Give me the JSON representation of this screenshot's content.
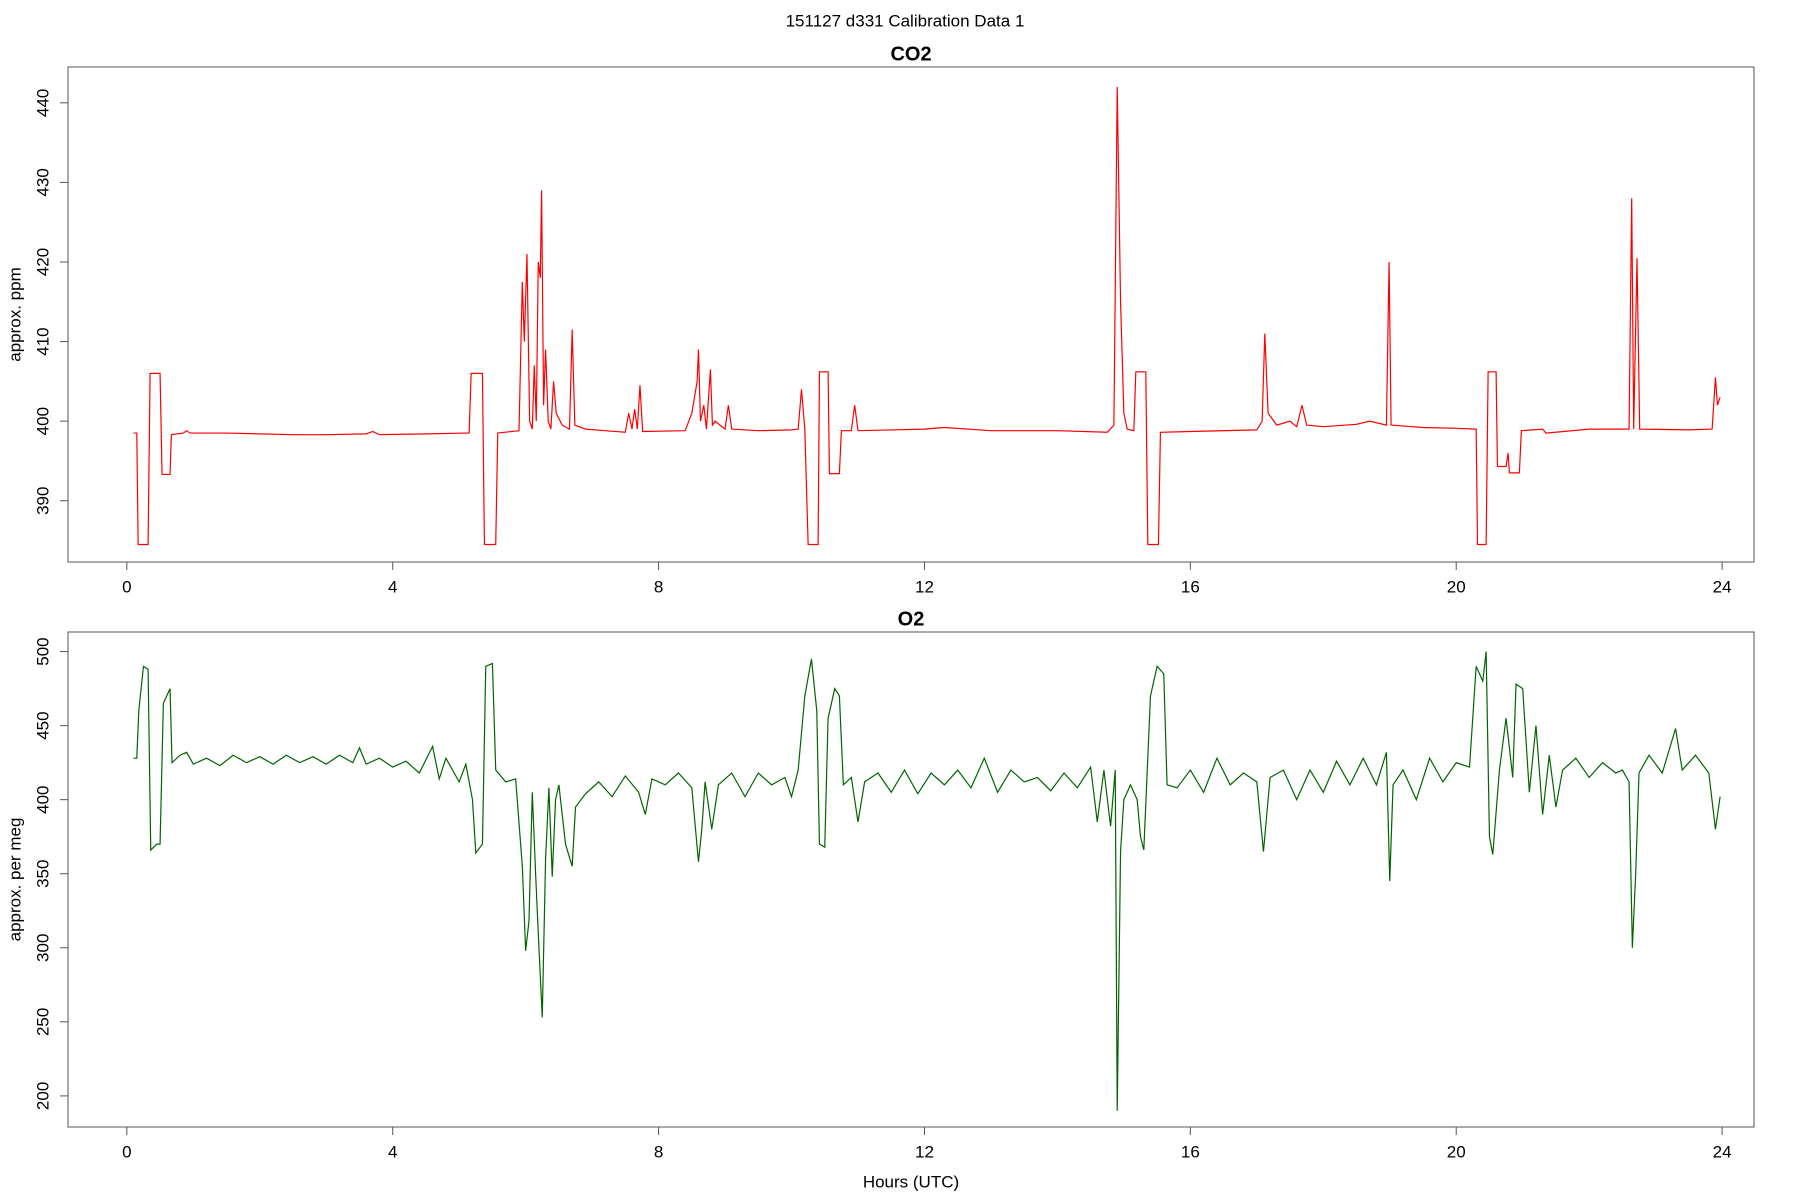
{
  "title": "151127   d331   Calibration Data 1",
  "chart_data": [
    {
      "type": "line",
      "title": "CO2",
      "ylabel": "approx. ppm",
      "xlim": [
        -0.885,
        24.48
      ],
      "ylim": [
        382.3,
        444.5
      ],
      "xticks": [
        0,
        4,
        8,
        12,
        16,
        20,
        24
      ],
      "yticks": [
        390,
        400,
        410,
        420,
        430,
        440
      ],
      "x": [
        0.1,
        0.15,
        0.17,
        0.32,
        0.35,
        0.5,
        0.53,
        0.65,
        0.67,
        0.85,
        0.9,
        0.95,
        1.5,
        2.5,
        3.0,
        3.6,
        3.7,
        3.8,
        4.5,
        5.1,
        5.15,
        5.18,
        5.35,
        5.38,
        5.55,
        5.58,
        5.9,
        5.95,
        5.98,
        6.02,
        6.06,
        6.1,
        6.13,
        6.16,
        6.19,
        6.22,
        6.24,
        6.27,
        6.3,
        6.34,
        6.38,
        6.42,
        6.46,
        6.55,
        6.66,
        6.7,
        6.74,
        6.9,
        7.2,
        7.5,
        7.55,
        7.6,
        7.64,
        7.68,
        7.72,
        7.76,
        8.4,
        8.5,
        8.58,
        8.6,
        8.63,
        8.68,
        8.72,
        8.78,
        8.81,
        8.85,
        9.0,
        9.05,
        9.1,
        9.5,
        10.0,
        10.1,
        10.15,
        10.2,
        10.25,
        10.4,
        10.42,
        10.55,
        10.57,
        10.72,
        10.75,
        10.9,
        10.95,
        11.0,
        12.0,
        12.3,
        13.0,
        14.0,
        14.75,
        14.85,
        14.9,
        14.95,
        15.0,
        15.05,
        15.15,
        15.18,
        15.33,
        15.36,
        15.52,
        15.55,
        16.0,
        17.0,
        17.08,
        17.12,
        17.17,
        17.3,
        17.5,
        17.6,
        17.68,
        17.75,
        18.0,
        18.5,
        18.7,
        18.95,
        18.99,
        19.02,
        19.5,
        20.0,
        20.3,
        20.32,
        20.45,
        20.48,
        20.6,
        20.62,
        20.75,
        20.78,
        20.8,
        20.95,
        20.98,
        21.3,
        21.35,
        22.0,
        22.6,
        22.64,
        22.67,
        22.72,
        22.76,
        23.5,
        23.85,
        23.9,
        23.93,
        23.97
      ],
      "series": [
        {
          "color": "#ff0000",
          "values": [
            398.5,
            398.5,
            384.5,
            384.5,
            406,
            406,
            393.3,
            393.3,
            398.3,
            398.5,
            398.8,
            398.5,
            398.5,
            398.3,
            398.3,
            398.4,
            398.7,
            398.3,
            398.4,
            398.5,
            398.5,
            406,
            406,
            384.5,
            384.5,
            398.5,
            398.8,
            417.5,
            410,
            421,
            400,
            399,
            407,
            400,
            420,
            418,
            429,
            402,
            409,
            400,
            399,
            405,
            401,
            399.5,
            399,
            411.5,
            399.5,
            399,
            398.8,
            398.6,
            401,
            399,
            401.5,
            399,
            404.5,
            398.7,
            398.8,
            401,
            405,
            409,
            400,
            402,
            399,
            406.5,
            399.5,
            400,
            399,
            402,
            399,
            398.8,
            398.9,
            399,
            404,
            399,
            384.5,
            384.5,
            406.2,
            406.2,
            393.4,
            393.4,
            398.8,
            398.8,
            402,
            398.8,
            399,
            399.2,
            398.8,
            398.8,
            398.6,
            399.5,
            442,
            415,
            401,
            399,
            398.8,
            406.2,
            406.2,
            384.5,
            384.5,
            398.6,
            398.7,
            398.9,
            400,
            411,
            401,
            399.5,
            400,
            399.3,
            402,
            399.5,
            399.3,
            399.6,
            400,
            399.5,
            420,
            399.5,
            399.2,
            399.1,
            399,
            384.5,
            384.5,
            406.2,
            406.2,
            394.3,
            394.3,
            396,
            393.5,
            393.5,
            398.8,
            399,
            398.5,
            399,
            399,
            428,
            399,
            420.5,
            399,
            398.9,
            399,
            405.5,
            402,
            403
          ]
        }
      ]
    },
    {
      "type": "line",
      "title": "O2",
      "ylabel": "approx. per meg",
      "xlabel": "Hours (UTC)",
      "xlim": [
        -0.885,
        24.48
      ],
      "ylim": [
        179,
        513.2
      ],
      "xticks": [
        0,
        4,
        8,
        12,
        16,
        20,
        24
      ],
      "yticks": [
        200,
        250,
        300,
        350,
        400,
        450,
        500
      ],
      "x": [
        0.1,
        0.15,
        0.18,
        0.25,
        0.32,
        0.36,
        0.45,
        0.5,
        0.55,
        0.65,
        0.68,
        0.8,
        0.9,
        1.0,
        1.2,
        1.4,
        1.6,
        1.8,
        2.0,
        2.2,
        2.4,
        2.6,
        2.8,
        3.0,
        3.2,
        3.4,
        3.5,
        3.6,
        3.8,
        4.0,
        4.2,
        4.4,
        4.6,
        4.7,
        4.8,
        5.0,
        5.1,
        5.2,
        5.25,
        5.35,
        5.4,
        5.5,
        5.55,
        5.7,
        5.85,
        5.95,
        6.0,
        6.05,
        6.1,
        6.15,
        6.2,
        6.25,
        6.3,
        6.35,
        6.4,
        6.45,
        6.5,
        6.6,
        6.7,
        6.75,
        6.9,
        7.1,
        7.3,
        7.5,
        7.7,
        7.8,
        7.9,
        8.1,
        8.3,
        8.5,
        8.6,
        8.65,
        8.7,
        8.8,
        8.9,
        9.1,
        9.3,
        9.5,
        9.7,
        9.9,
        10.0,
        10.1,
        10.2,
        10.3,
        10.38,
        10.42,
        10.5,
        10.55,
        10.65,
        10.72,
        10.78,
        10.9,
        11.0,
        11.1,
        11.3,
        11.5,
        11.7,
        11.9,
        12.1,
        12.3,
        12.5,
        12.7,
        12.9,
        13.1,
        13.3,
        13.5,
        13.7,
        13.9,
        14.1,
        14.3,
        14.5,
        14.6,
        14.7,
        14.8,
        14.87,
        14.9,
        14.95,
        15.0,
        15.1,
        15.2,
        15.25,
        15.3,
        15.4,
        15.5,
        15.6,
        15.65,
        15.8,
        16.0,
        16.2,
        16.4,
        16.6,
        16.8,
        17.0,
        17.1,
        17.2,
        17.4,
        17.6,
        17.8,
        18.0,
        18.2,
        18.4,
        18.6,
        18.8,
        18.95,
        19.0,
        19.05,
        19.2,
        19.4,
        19.6,
        19.8,
        20.0,
        20.2,
        20.3,
        20.4,
        20.45,
        20.5,
        20.55,
        20.65,
        20.75,
        20.85,
        20.9,
        21.0,
        21.1,
        21.2,
        21.3,
        21.4,
        21.5,
        21.6,
        21.8,
        22.0,
        22.2,
        22.4,
        22.5,
        22.6,
        22.65,
        22.7,
        22.75,
        22.9,
        23.1,
        23.3,
        23.4,
        23.6,
        23.8,
        23.9,
        23.97
      ],
      "series": [
        {
          "color": "#006400",
          "values": [
            428,
            428,
            460,
            490,
            488,
            366,
            370,
            370,
            465,
            475,
            425,
            430,
            432,
            424,
            428,
            423,
            430,
            425,
            429,
            424,
            430,
            425,
            429,
            424,
            430,
            425,
            435,
            424,
            428,
            422,
            426,
            418,
            436,
            414,
            428,
            412,
            424,
            400,
            364,
            370,
            490,
            492,
            420,
            412,
            414,
            355,
            298,
            318,
            405,
            350,
            300,
            253,
            360,
            408,
            348,
            400,
            410,
            370,
            355,
            395,
            404,
            412,
            402,
            416,
            405,
            390,
            414,
            410,
            418,
            408,
            358,
            380,
            412,
            380,
            410,
            418,
            402,
            418,
            410,
            415,
            402,
            420,
            470,
            495,
            460,
            370,
            368,
            455,
            475,
            470,
            410,
            415,
            385,
            412,
            418,
            405,
            420,
            404,
            418,
            410,
            420,
            408,
            428,
            405,
            420,
            412,
            415,
            406,
            418,
            408,
            422,
            385,
            420,
            382,
            420,
            190,
            365,
            400,
            410,
            400,
            375,
            366,
            470,
            490,
            485,
            410,
            408,
            420,
            405,
            428,
            410,
            418,
            412,
            365,
            415,
            420,
            400,
            420,
            405,
            426,
            410,
            428,
            410,
            432,
            345,
            410,
            420,
            400,
            428,
            412,
            425,
            422,
            490,
            480,
            500,
            375,
            363,
            420,
            455,
            415,
            478,
            475,
            405,
            450,
            390,
            430,
            395,
            420,
            428,
            415,
            425,
            418,
            420,
            412,
            300,
            350,
            418,
            430,
            418,
            448,
            420,
            430,
            418,
            380,
            402
          ]
        }
      ]
    }
  ]
}
